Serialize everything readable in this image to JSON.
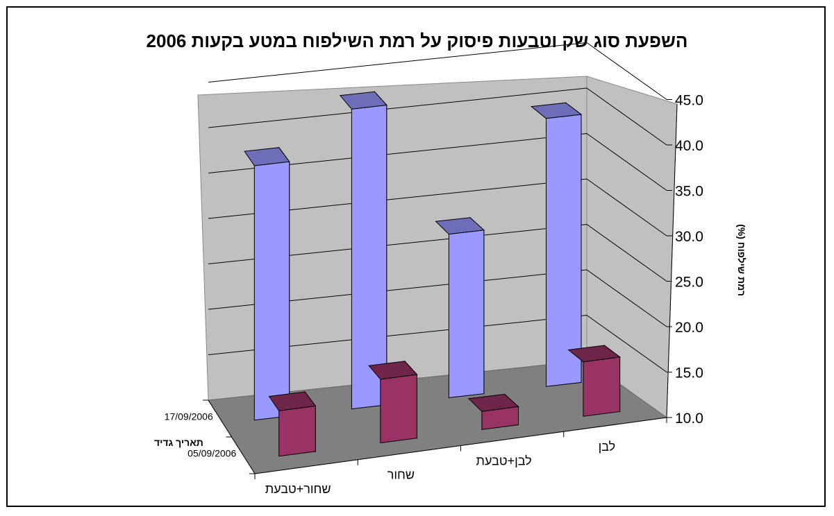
{
  "chart_data": {
    "type": "bar",
    "title": "השפעת סוג שק וטבעות פיסוק על רמת השילפוח במטע בקעות 2006",
    "xlabel": "",
    "ylabel": "רמת שילפוח (%)",
    "zlabel": "תאריך גדיד",
    "categories": [
      "שחור+טבעת",
      "שחור",
      "לבן+טבעת",
      "לבן"
    ],
    "series": [
      {
        "name": "17/09/2006",
        "values": [
          38.0,
          43.0,
          28.0,
          39.5
        ]
      },
      {
        "name": "05/09/2006",
        "values": [
          15.0,
          17.0,
          12.0,
          16.0
        ]
      }
    ],
    "ylim": [
      10,
      45
    ],
    "yticks": [
      "10.0",
      "15.0",
      "20.0",
      "25.0",
      "30.0",
      "35.0",
      "40.0",
      "45.0"
    ],
    "grid": true,
    "colors": {
      "back_series": "#9999ff",
      "front_series": "#993366",
      "walls": "#c0c0c0",
      "floor": "#808080"
    }
  }
}
